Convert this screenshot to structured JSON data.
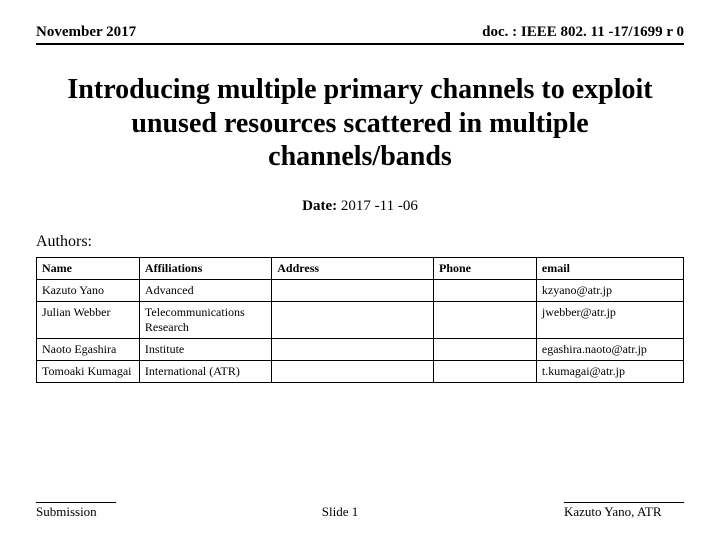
{
  "header": {
    "left": "November 2017",
    "right": "doc. : IEEE 802. 11 -17/1699 r 0"
  },
  "title": "Introducing multiple primary channels to exploit unused resources scattered in multiple channels/bands",
  "date": {
    "label": "Date:",
    "value": "2017 -11 -06"
  },
  "authors_label": "Authors:",
  "table": {
    "columns": [
      "Name",
      "Affiliations",
      "Address",
      "Phone",
      "email"
    ],
    "rows": [
      {
        "name": "Kazuto Yano",
        "affil": "Advanced",
        "address": "",
        "phone": "",
        "email": "kzyano@atr.jp"
      },
      {
        "name": "Julian Webber",
        "affil": "Telecommunications Research",
        "address": "",
        "phone": "",
        "email": "jwebber@atr.jp"
      },
      {
        "name": "Naoto Egashira",
        "affil": "Institute",
        "address": "",
        "phone": "",
        "email": "egashira.naoto@atr.jp"
      },
      {
        "name": "Tomoaki Kumagai",
        "affil": "International (ATR)",
        "address": "",
        "phone": "",
        "email": "t.kumagai@atr.jp"
      }
    ]
  },
  "footer": {
    "left": "Submission",
    "center": "Slide 1",
    "right": "Kazuto Yano, ATR"
  }
}
